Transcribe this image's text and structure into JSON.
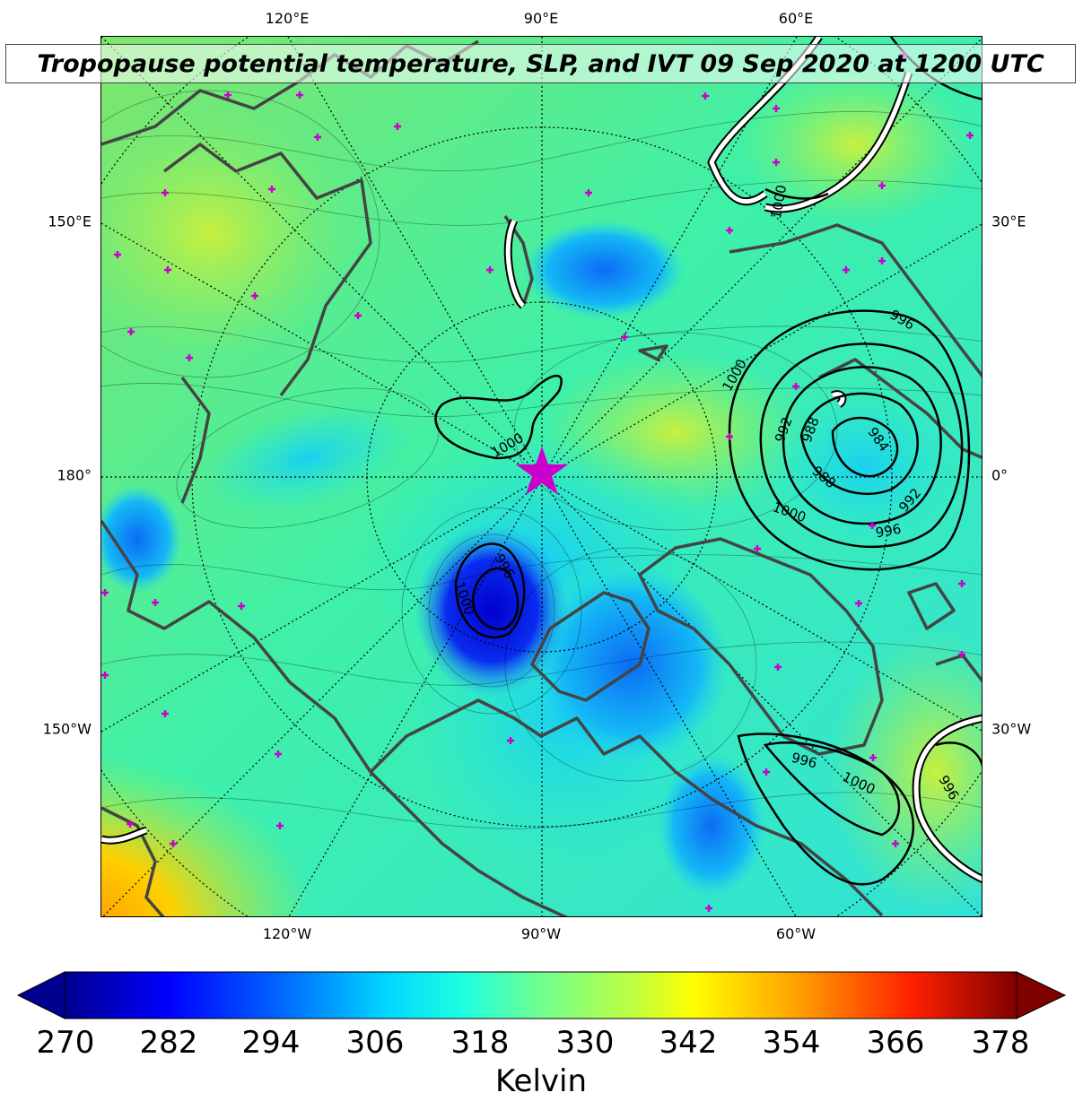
{
  "title": "Tropopause potential temperature, SLP, and IVT 09 Sep 2020 at 1200 UTC",
  "map": {
    "projection": "north-polar-stereographic",
    "center_marker": "star-icon",
    "top_labels": [
      "120°E",
      "90°E",
      "60°E"
    ],
    "bottom_labels": [
      "120°W",
      "90°W",
      "60°W"
    ],
    "left_labels": [
      "150°E",
      "180°",
      "150°W"
    ],
    "right_labels": [
      "30°E",
      "0°",
      "30°W"
    ],
    "slp_contour_labels": [
      "1000",
      "1000",
      "996",
      "988",
      "984",
      "992",
      "988",
      "1000",
      "996",
      "992",
      "996",
      "1000",
      "996",
      "1000",
      "996",
      "1000"
    ],
    "colors": {
      "slp_contour": "#000000",
      "coastline": "#444444",
      "station_marker": "#cc00cc",
      "ivt_outline": "#000000",
      "ivt_fill": "#ffffff"
    }
  },
  "colorbar": {
    "ticks": [
      "270",
      "282",
      "294",
      "306",
      "318",
      "330",
      "342",
      "354",
      "366",
      "378"
    ],
    "min": 270,
    "max": 378,
    "unit": "Kelvin",
    "colormap": "jet",
    "extend": "both"
  }
}
